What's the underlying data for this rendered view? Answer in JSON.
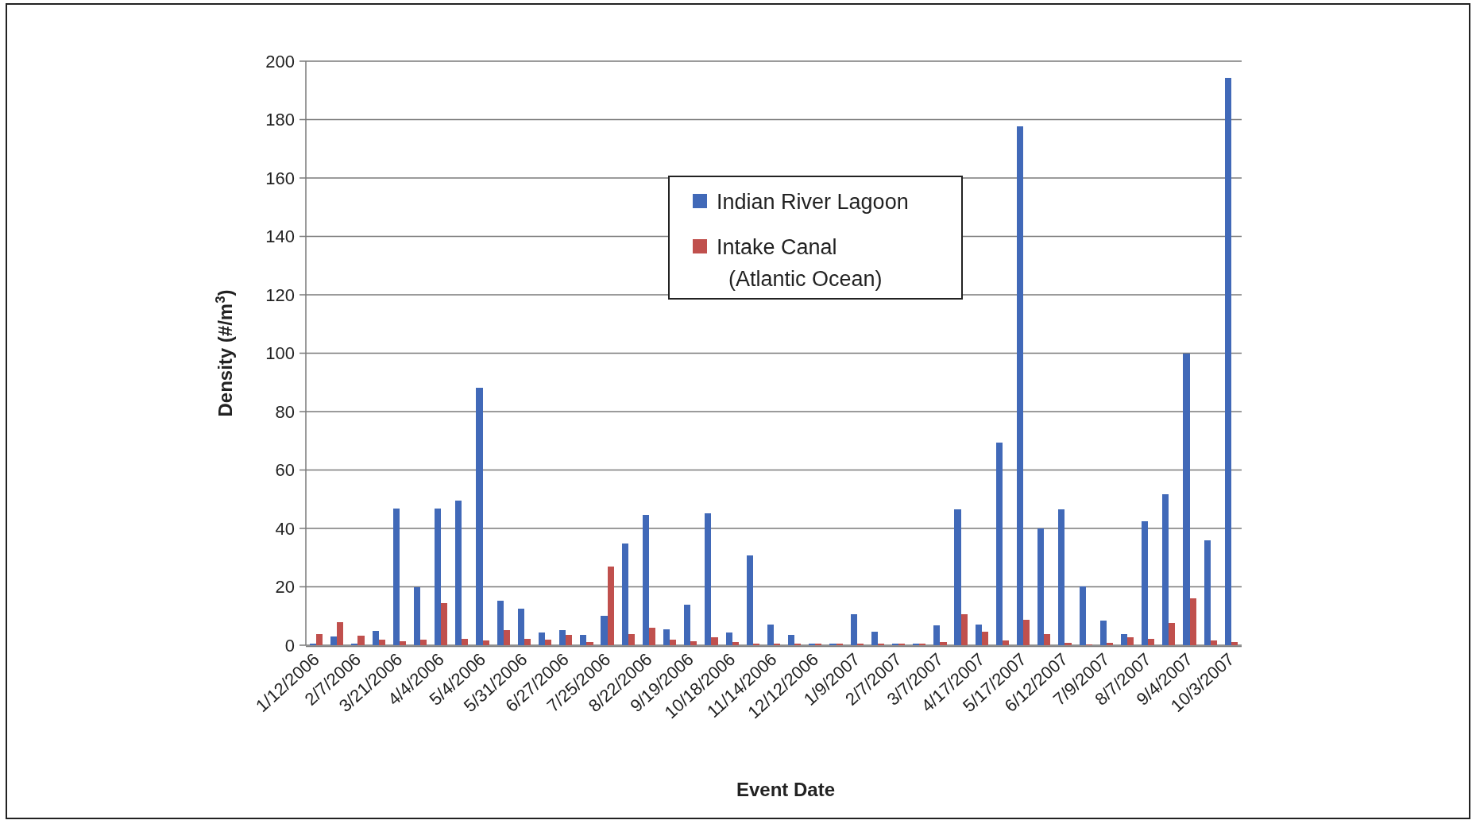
{
  "chart_data": {
    "type": "bar",
    "xlabel": "Event Date",
    "ylabel": "Density (#/m$^{3}$)",
    "categories": [
      "1/12/2006",
      null,
      "2/7/2006",
      null,
      "3/21/2006",
      null,
      "4/4/2006",
      null,
      "5/4/2006",
      null,
      "5/31/2006",
      null,
      "6/27/2006",
      null,
      "7/25/2006",
      null,
      "8/22/2006",
      null,
      "9/19/2006",
      null,
      "10/18/2006",
      null,
      "11/14/2006",
      null,
      "12/12/2006",
      null,
      "1/9/2007",
      null,
      "2/7/2007",
      null,
      "3/7/2007",
      null,
      "4/17/2007",
      null,
      "5/17/2007",
      null,
      "6/12/2007",
      null,
      "7/9/2007",
      null,
      "8/7/2007",
      null,
      "9/4/2007",
      null,
      "10/3/2007"
    ],
    "series": [
      {
        "name": "Indian River Lagoon",
        "color": "#4169b8",
        "values": [
          0.6,
          3,
          0.6,
          4.9,
          46.7,
          20,
          46.7,
          49.6,
          88.2,
          15.2,
          12.4,
          4.3,
          5.1,
          3.5,
          10.1,
          34.7,
          44.7,
          5.5,
          13.8,
          45.2,
          4.3,
          30.8,
          7.2,
          3.6,
          0.6,
          0.6,
          10.6,
          4.7,
          0.5,
          0.5,
          6.9,
          46.5,
          7.1,
          69.3,
          177.6,
          40,
          46.5,
          20.1,
          8.4,
          3.9,
          42.5,
          51.6,
          99.9,
          35.8,
          194.4
        ]
      },
      {
        "name": "Intake Canal\n(Atlantic Ocean)",
        "color": "#c0504d",
        "values": [
          3.9,
          7.9,
          3.4,
          1.8,
          1.3,
          1.8,
          14.3,
          2.2,
          1.5,
          5.2,
          2.2,
          2,
          3.6,
          1.2,
          26.9,
          3.8,
          5.9,
          1.8,
          1.4,
          2.6,
          1.1,
          0.6,
          0.6,
          0.6,
          0.6,
          0.6,
          0.6,
          0.5,
          0.5,
          0.5,
          1.1,
          10.5,
          4.7,
          1.7,
          8.7,
          3.8,
          0.9,
          0.4,
          0.9,
          2.7,
          2.3,
          7.6,
          16,
          1.5,
          1.1
        ]
      }
    ],
    "ylim": [
      0,
      200
    ],
    "yticks": [
      0,
      20,
      40,
      60,
      80,
      100,
      120,
      140,
      160,
      180,
      200
    ],
    "grid": "y",
    "legend": "top"
  }
}
